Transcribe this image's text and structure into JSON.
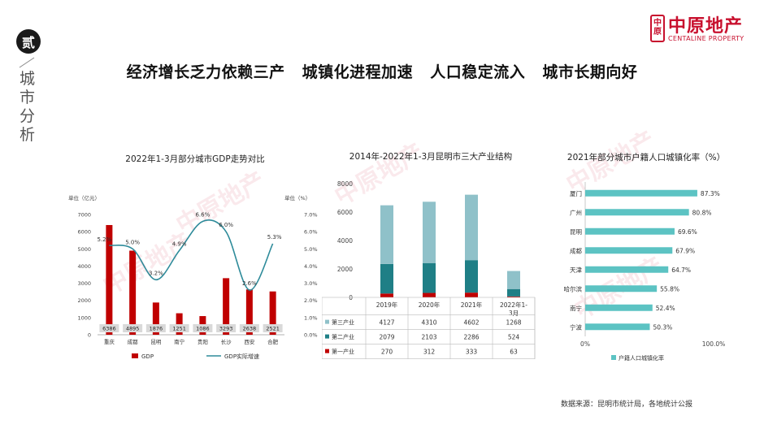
{
  "section": {
    "number": "贰",
    "title": "城市分析"
  },
  "logo": {
    "mark": "中原",
    "name": "中原地产",
    "english": "CENTALINE PROPERTY"
  },
  "headline": "经济增长乏力依赖三产 城镇化进程加速 人口稳定流入 城市长期向好",
  "source": "数据来源：昆明市统计局，各地统计公报",
  "colors": {
    "brand": "#c8102e",
    "gdp_bar": "#c00000",
    "growth_line": "#2e8b9a",
    "tertiary": "#8fc1c9",
    "secondary": "#1f7f86",
    "primary": "#c00000",
    "urbanization": "#5cc3c3"
  },
  "chart_data": [
    {
      "type": "bar",
      "title": "2022年1-3月部分城市GDP走势对比",
      "ylabel": "单位（亿元）",
      "y2label": "单位（%）",
      "ylim": [
        0,
        7000
      ],
      "y2lim": [
        0,
        7.0
      ],
      "yticks": [
        "0",
        "1000",
        "2000",
        "3000",
        "4000",
        "5000",
        "6000",
        "7000"
      ],
      "y2ticks": [
        "0.0%",
        "1.0%",
        "2.0%",
        "3.0%",
        "4.0%",
        "5.0%",
        "6.0%",
        "7.0%"
      ],
      "categories": [
        "重庆",
        "成都",
        "昆明",
        "南宁",
        "贵阳",
        "长沙",
        "西安",
        "合肥"
      ],
      "series": [
        {
          "name": "GDP",
          "type": "bar",
          "values": [
            6386,
            4895,
            1876,
            1251,
            1086,
            3293,
            2638,
            2521
          ],
          "labels": [
            "6386",
            "4895",
            "1876",
            "1251",
            "1086",
            "3293",
            "2638",
            "2521"
          ]
        },
        {
          "name": "GDP实际增速",
          "type": "line",
          "values": [
            5.2,
            5.0,
            3.2,
            4.9,
            6.6,
            6.0,
            2.6,
            5.3
          ],
          "labels": [
            "5.2%",
            "5.0%",
            "3.2%",
            "4.9%",
            "6.6%",
            "6.0%",
            "2.6%",
            "5.3%"
          ]
        }
      ],
      "legend": "bottom"
    },
    {
      "type": "bar",
      "stacked": true,
      "title": "2014年-2022年1-3月昆明市三大产业结构",
      "ylim": [
        0,
        8000
      ],
      "yticks": [
        "0",
        "2000",
        "4000",
        "6000",
        "8000"
      ],
      "categories": [
        "2019年",
        "2020年",
        "2021年",
        "2022年1-3月"
      ],
      "series": [
        {
          "name": "第三产业",
          "values": [
            4127,
            4310,
            4602,
            1268
          ],
          "labels": [
            "4127",
            "4310",
            "4602",
            "1268"
          ]
        },
        {
          "name": "第二产业",
          "values": [
            2079,
            2103,
            2286,
            524
          ],
          "labels": [
            "2079",
            "2103",
            "2286",
            "524"
          ]
        },
        {
          "name": "第一产业",
          "values": [
            270,
            312,
            333,
            63
          ],
          "labels": [
            "270",
            "312",
            "333",
            "63"
          ]
        }
      ],
      "legend": "table-left"
    },
    {
      "type": "bar",
      "orientation": "horizontal",
      "title": "2021年部分城市户籍人口城镇化率（%）",
      "xlim": [
        0,
        100
      ],
      "xticks": [
        "0%",
        "100.0%"
      ],
      "categories": [
        "厦门",
        "广州",
        "昆明",
        "成都",
        "天津",
        "哈尔滨",
        "南宁",
        "宁波"
      ],
      "series": [
        {
          "name": "户籍人口城镇化率",
          "values": [
            87.3,
            80.8,
            69.6,
            67.9,
            64.7,
            55.8,
            52.4,
            50.3
          ],
          "labels": [
            "87.3%",
            "80.8%",
            "69.6%",
            "67.9%",
            "64.7%",
            "55.8%",
            "52.4%",
            "50.3%"
          ]
        }
      ],
      "legend": "bottom"
    }
  ]
}
